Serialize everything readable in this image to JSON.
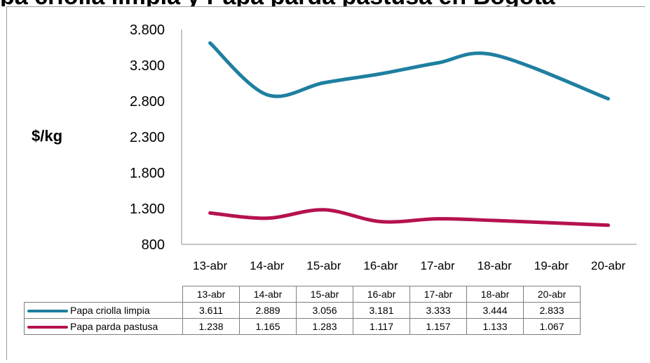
{
  "title": "pa criolla limpia y Papa parda pastusa en Bogotá",
  "colors": {
    "criolla": "#1f7fa0",
    "pastusa": "#b5124f",
    "axis": "#8c8c8c",
    "grid": "#9a9a9a"
  },
  "chart_data": {
    "type": "line",
    "title": "pa criolla limpia y Papa parda pastusa en Bogotá",
    "ylabel": "$/kg",
    "xlabel": "",
    "ylim": [
      800,
      3800
    ],
    "yticks": [
      "3.800",
      "3.300",
      "2.800",
      "2.300",
      "1.800",
      "1.300",
      "800"
    ],
    "ytick_values": [
      3800,
      3300,
      2800,
      2300,
      1800,
      1300,
      800
    ],
    "categories": [
      "13-abr",
      "14-abr",
      "15-abr",
      "16-abr",
      "17-abr",
      "18-abr",
      "19-abr",
      "20-abr"
    ],
    "series": [
      {
        "name": "Papa criolla limpia",
        "x": [
          "13-abr",
          "14-abr",
          "15-abr",
          "16-abr",
          "17-abr",
          "18-abr",
          "20-abr"
        ],
        "values": [
          3611,
          2889,
          3056,
          3181,
          3333,
          3444,
          2833
        ],
        "labels": [
          "3.611",
          "2.889",
          "3.056",
          "3.181",
          "3.333",
          "3.444",
          "2.833"
        ]
      },
      {
        "name": "Papa parda pastusa",
        "x": [
          "13-abr",
          "14-abr",
          "15-abr",
          "16-abr",
          "17-abr",
          "18-abr",
          "20-abr"
        ],
        "values": [
          1238,
          1165,
          1283,
          1117,
          1157,
          1133,
          1067
        ],
        "labels": [
          "1.238",
          "1.165",
          "1.283",
          "1.117",
          "1.157",
          "1.133",
          "1.067"
        ]
      }
    ],
    "grid": false,
    "legend": "data-table-below"
  },
  "table": {
    "headers": [
      "13-abr",
      "14-abr",
      "15-abr",
      "16-abr",
      "17-abr",
      "18-abr",
      "20-abr"
    ]
  }
}
